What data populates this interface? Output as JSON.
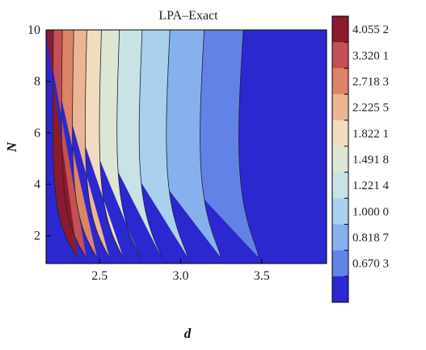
{
  "chart_data": {
    "type": "contour",
    "title": "LPA–Exact",
    "xlabel": "d",
    "ylabel": "N",
    "xlim": [
      2.17,
      3.9
    ],
    "ylim": [
      0.92,
      10.0
    ],
    "xticks": [
      "2.5",
      "3.0",
      "3.5"
    ],
    "xtick_values": [
      2.5,
      3.0,
      3.5
    ],
    "yticks": [
      "2",
      "4",
      "6",
      "8",
      "10"
    ],
    "ytick_values": [
      2,
      4,
      6,
      8,
      10
    ],
    "colorbar": {
      "labels": [
        "4.055 2",
        "3.320 1",
        "2.718 3",
        "2.225 5",
        "1.822 1",
        "1.491 8",
        "1.221 4",
        "1.000 0",
        "0.818 7",
        "0.670 3"
      ],
      "colors": [
        "#8b1a2e",
        "#c45055",
        "#dd8366",
        "#edb595",
        "#f2dcbe",
        "#dde6d3",
        "#c8e2e6",
        "#a9d0ed",
        "#86b1ec",
        "#6282e6",
        "#2b28cf"
      ]
    },
    "contours": [
      {
        "name": "c0",
        "x_top": 2.215,
        "x_bottom": 2.17,
        "y_knee": 1.35
      },
      {
        "name": "c1",
        "x_top": 2.27,
        "x_bottom": 2.21,
        "y_knee": 1.45
      },
      {
        "name": "c2",
        "x_top": 2.34,
        "x_bottom": 2.25,
        "y_knee": 1.55
      },
      {
        "name": "c3",
        "x_top": 2.42,
        "x_bottom": 2.31,
        "y_knee": 1.65
      },
      {
        "name": "c4",
        "x_top": 2.51,
        "x_bottom": 2.37,
        "y_knee": 1.75
      },
      {
        "name": "c5",
        "x_top": 2.62,
        "x_bottom": 2.45,
        "y_knee": 1.85
      },
      {
        "name": "c6",
        "x_top": 2.76,
        "x_bottom": 2.55,
        "y_knee": 1.95
      },
      {
        "name": "c7",
        "x_top": 2.93,
        "x_bottom": 2.68,
        "y_knee": 2.05
      },
      {
        "name": "c8",
        "x_top": 3.14,
        "x_bottom": 2.85,
        "y_knee": 2.15
      },
      {
        "name": "c9",
        "x_top": 3.38,
        "x_bottom": 3.05,
        "y_knee": 2.25
      }
    ]
  }
}
